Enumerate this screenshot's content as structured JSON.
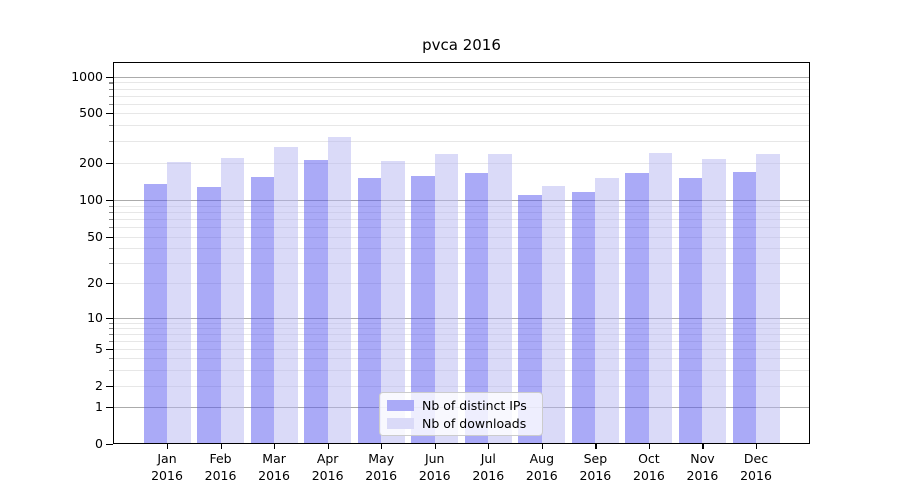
{
  "title": "pvca 2016",
  "legend": {
    "items": [
      {
        "label": "Nb of distinct IPs",
        "color": "#aaaaf7"
      },
      {
        "label": "Nb of downloads",
        "color": "#dadaf8"
      }
    ]
  },
  "colors": {
    "bar_distinct_ips": "rgba(85,85,240,0.5)",
    "bar_downloads": "rgba(181,181,241,0.5)",
    "major_grid": "#ababab",
    "minor_grid": "#e7e7e7",
    "spine": "#000000"
  },
  "chart_data": {
    "type": "bar",
    "title": "pvca 2016",
    "categories": [
      "Jan",
      "Feb",
      "Mar",
      "Apr",
      "May",
      "Jun",
      "Jul",
      "Aug",
      "Sep",
      "Oct",
      "Nov",
      "Dec"
    ],
    "x_year": "2016",
    "series": [
      {
        "name": "Nb of distinct IPs",
        "values": [
          135,
          128,
          155,
          210,
          150,
          157,
          165,
          110,
          116,
          165,
          150,
          168
        ]
      },
      {
        "name": "Nb of downloads",
        "values": [
          205,
          220,
          268,
          322,
          207,
          235,
          235,
          130,
          150,
          240,
          215,
          235
        ]
      }
    ],
    "yscale": "symlog",
    "yticks": [
      0,
      1,
      2,
      5,
      10,
      20,
      50,
      100,
      200,
      500,
      1000
    ],
    "ylim": [
      0,
      1350
    ],
    "xlabel": "",
    "ylabel": "",
    "grid": "both",
    "legend_position": "lower-center"
  }
}
